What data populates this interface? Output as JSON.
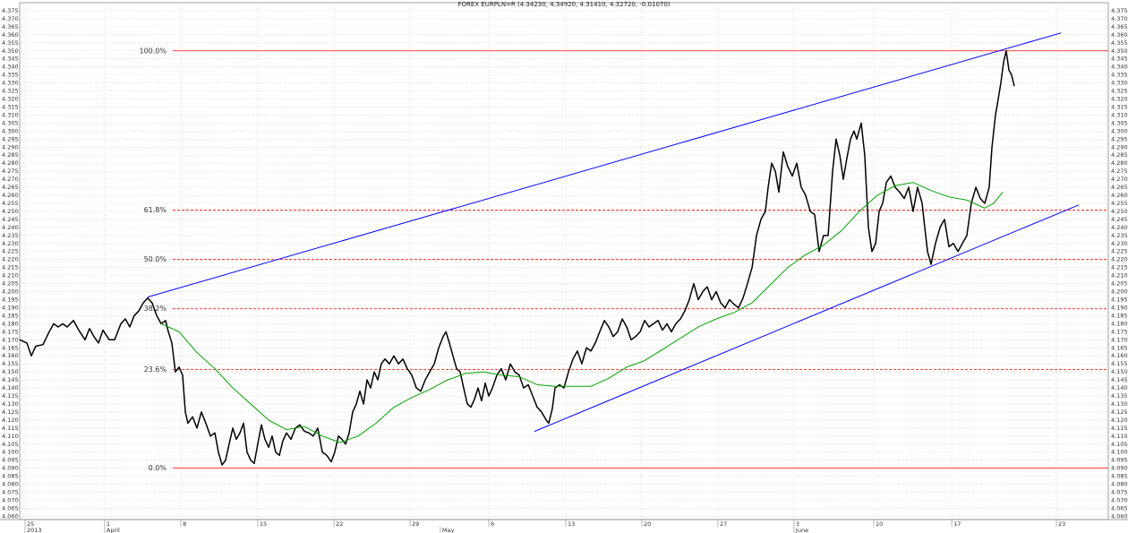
{
  "chart_data": {
    "type": "line",
    "title": "FOREX EURPLN=R (4.34230, 4.34920, 4.31410, 4.32720, -0.01070)",
    "xlim": [
      -0.35,
      70.76
    ],
    "ylim": [
      4.058,
      4.38
    ],
    "grid": true,
    "xticks": [
      {
        "value": 0,
        "label": "25"
      },
      {
        "value": 5.2,
        "label": "1"
      },
      {
        "value": 10.18,
        "label": "8"
      },
      {
        "value": 15.2,
        "label": "15"
      },
      {
        "value": 20.18,
        "label": "22"
      },
      {
        "value": 25.15,
        "label": "29"
      },
      {
        "value": 30.29,
        "label": "6"
      },
      {
        "value": 35.32,
        "label": "13"
      },
      {
        "value": 40.29,
        "label": "20"
      },
      {
        "value": 45.26,
        "label": "27"
      },
      {
        "value": 50.23,
        "label": "3"
      },
      {
        "value": 55.44,
        "label": "10"
      },
      {
        "value": 60.53,
        "label": "17"
      },
      {
        "value": 67.37,
        "label": "23"
      }
    ],
    "x_periods": [
      {
        "value": 0,
        "label": "2013"
      },
      {
        "value": 5.2,
        "label": "April"
      },
      {
        "value": 27.13,
        "label": "May"
      },
      {
        "value": 50.23,
        "label": "June"
      }
    ],
    "yticks": [
      {
        "value": 4.06,
        "label": "4.060"
      },
      4.065,
      {
        "value": 4.07,
        "label": "4.070"
      },
      4.075,
      {
        "value": 4.08,
        "label": "4.080"
      },
      4.085,
      {
        "value": 4.09,
        "label": "4.090"
      },
      4.095,
      {
        "value": 4.1,
        "label": "4.100"
      },
      4.105,
      {
        "value": 4.11,
        "label": "4.110"
      },
      4.115,
      {
        "value": 4.12,
        "label": "4.120"
      },
      4.125,
      {
        "value": 4.13,
        "label": "4.130"
      },
      4.135,
      {
        "value": 4.14,
        "label": "4.140"
      },
      4.145,
      {
        "value": 4.15,
        "label": "4.150"
      },
      4.155,
      {
        "value": 4.16,
        "label": "4.160"
      },
      4.165,
      {
        "value": 4.17,
        "label": "4.170"
      },
      4.175,
      {
        "value": 4.18,
        "label": "4.180"
      },
      4.185,
      {
        "value": 4.19,
        "label": "4.190"
      },
      4.195,
      {
        "value": 4.2,
        "label": "4.200"
      },
      4.205,
      {
        "value": 4.21,
        "label": "4.210"
      },
      4.215,
      {
        "value": 4.22,
        "label": "4.220"
      },
      4.225,
      {
        "value": 4.23,
        "label": "4.230"
      },
      4.235,
      {
        "value": 4.24,
        "label": "4.240"
      },
      4.245,
      {
        "value": 4.25,
        "label": "4.250"
      },
      4.255,
      {
        "value": 4.26,
        "label": "4.260"
      },
      4.265,
      {
        "value": 4.27,
        "label": "4.270"
      },
      4.275,
      {
        "value": 4.28,
        "label": "4.280"
      },
      4.285,
      {
        "value": 4.29,
        "label": "4.290"
      },
      4.295,
      {
        "value": 4.3,
        "label": "4.300"
      },
      4.305,
      {
        "value": 4.31,
        "label": "4.310"
      },
      4.315,
      {
        "value": 4.32,
        "label": "4.320"
      },
      4.325,
      {
        "value": 4.33,
        "label": "4.330"
      },
      4.335,
      {
        "value": 4.34,
        "label": "4.340"
      },
      4.345,
      {
        "value": 4.35,
        "label": "4.350"
      },
      4.355,
      {
        "value": 4.36,
        "label": "4.360"
      },
      4.365,
      {
        "value": 4.37,
        "label": "4.370"
      },
      4.375
    ],
    "series": [
      {
        "color": "#000000",
        "x": [
          -0.35,
          0.12,
          0.41,
          0.7,
          1.17,
          1.58,
          1.87,
          2.16,
          2.46,
          2.75,
          3.16,
          3.51,
          3.92,
          4.21,
          4.5,
          4.8,
          5.09,
          5.5,
          5.85,
          6.26,
          6.55,
          6.84,
          7.13,
          7.43,
          7.72,
          8.01,
          8.3,
          8.6,
          8.89,
          9.18,
          9.36,
          9.59,
          9.82,
          10.06,
          10.29,
          10.47,
          10.64,
          10.94,
          11.23,
          11.52,
          11.81,
          12.11,
          12.4,
          12.63,
          12.87,
          13.1,
          13.33,
          13.57,
          13.8,
          14.04,
          14.27,
          14.5,
          14.74,
          14.97,
          15.2,
          15.44,
          15.67,
          15.91,
          16.14,
          16.37,
          16.61,
          16.84,
          17.08,
          17.37,
          17.66,
          17.95,
          18.25,
          18.54,
          18.83,
          19.12,
          19.42,
          19.71,
          20.0,
          20.23,
          20.47,
          20.7,
          20.94,
          21.17,
          21.4,
          21.64,
          21.87,
          22.11,
          22.34,
          22.57,
          22.81,
          23.04,
          23.27,
          23.51,
          23.8,
          24.09,
          24.39,
          24.68,
          24.97,
          25.26,
          25.56,
          25.85,
          26.14,
          26.43,
          26.73,
          27.02,
          27.31,
          27.49,
          27.72,
          27.95,
          28.19,
          28.42,
          28.65,
          28.89,
          29.12,
          29.36,
          29.59,
          29.82,
          30.06,
          30.29,
          30.53,
          30.82,
          31.11,
          31.4,
          31.7,
          31.99,
          32.28,
          32.57,
          32.87,
          33.16,
          33.45,
          33.74,
          34.04,
          34.21,
          34.44,
          34.62,
          34.91,
          35.2,
          35.5,
          35.79,
          36.08,
          36.37,
          36.67,
          36.96,
          37.25,
          37.54,
          37.84,
          38.13,
          38.42,
          38.71,
          39.01,
          39.3,
          39.59,
          39.88,
          40.18,
          40.47,
          40.76,
          41.05,
          41.35,
          41.64,
          41.93,
          42.22,
          42.51,
          42.81,
          43.1,
          43.39,
          43.68,
          43.98,
          44.27,
          44.56,
          44.85,
          45.15,
          45.44,
          45.73,
          46.02,
          46.32,
          46.61,
          46.9,
          47.19,
          47.49,
          47.78,
          48.07,
          48.36,
          48.54,
          48.77,
          49.01,
          49.24,
          49.53,
          49.82,
          50.12,
          50.41,
          50.7,
          50.99,
          51.29,
          51.58,
          51.87,
          52.16,
          52.46,
          52.75,
          52.98,
          53.22,
          53.45,
          53.68,
          53.92,
          54.15,
          54.33,
          54.62,
          54.85,
          55.09,
          55.32,
          55.56,
          55.79,
          56.02,
          56.26,
          56.55,
          56.84,
          57.13,
          57.43,
          57.72,
          58.01,
          58.3,
          58.6,
          58.77,
          58.95,
          59.18,
          59.47,
          59.77,
          60.06,
          60.35,
          60.64,
          60.94,
          61.23,
          61.52,
          61.81,
          62.11,
          62.4,
          62.69,
          62.98,
          63.16,
          63.39,
          63.57,
          63.74,
          63.92,
          64.09,
          64.27,
          64.44,
          64.62
        ],
        "values": [
          4.17,
          4.168,
          4.16,
          4.166,
          4.167,
          4.175,
          4.18,
          4.178,
          4.18,
          4.178,
          4.182,
          4.176,
          4.17,
          4.177,
          4.172,
          4.168,
          4.176,
          4.17,
          4.17,
          4.18,
          4.183,
          4.178,
          4.185,
          4.188,
          4.193,
          4.196,
          4.193,
          4.185,
          4.18,
          4.182,
          4.175,
          4.168,
          4.15,
          4.153,
          4.148,
          4.125,
          4.118,
          4.122,
          4.115,
          4.125,
          4.118,
          4.11,
          4.112,
          4.1,
          4.092,
          4.095,
          4.105,
          4.115,
          4.108,
          4.112,
          4.118,
          4.1,
          4.095,
          4.093,
          4.105,
          4.117,
          4.108,
          4.103,
          4.11,
          4.1,
          4.098,
          4.107,
          4.112,
          4.108,
          4.115,
          4.117,
          4.113,
          4.112,
          4.11,
          4.115,
          4.1,
          4.098,
          4.094,
          4.1,
          4.11,
          4.108,
          4.105,
          4.112,
          4.125,
          4.13,
          4.138,
          4.13,
          4.145,
          4.14,
          4.15,
          4.145,
          4.155,
          4.158,
          4.155,
          4.16,
          4.155,
          4.158,
          4.152,
          4.148,
          4.14,
          4.138,
          4.145,
          4.15,
          4.155,
          4.165,
          4.172,
          4.175,
          4.168,
          4.16,
          4.152,
          4.15,
          4.14,
          4.13,
          4.128,
          4.133,
          4.14,
          4.132,
          4.143,
          4.135,
          4.14,
          4.148,
          4.152,
          4.145,
          4.155,
          4.15,
          4.148,
          4.14,
          4.142,
          4.135,
          4.128,
          4.125,
          4.12,
          4.118,
          4.127,
          4.14,
          4.142,
          4.14,
          4.15,
          4.158,
          4.163,
          4.155,
          4.165,
          4.163,
          4.168,
          4.175,
          4.182,
          4.178,
          4.172,
          4.175,
          4.183,
          4.178,
          4.17,
          4.172,
          4.175,
          4.182,
          4.178,
          4.18,
          4.182,
          4.176,
          4.18,
          4.175,
          4.18,
          4.183,
          4.188,
          4.195,
          4.205,
          4.195,
          4.2,
          4.203,
          4.195,
          4.2,
          4.193,
          4.19,
          4.195,
          4.192,
          4.19,
          4.196,
          4.205,
          4.215,
          4.235,
          4.245,
          4.25,
          4.265,
          4.28,
          4.275,
          4.262,
          4.287,
          4.278,
          4.272,
          4.28,
          4.265,
          4.26,
          4.25,
          4.248,
          4.225,
          4.235,
          4.235,
          4.275,
          4.295,
          4.285,
          4.27,
          4.283,
          4.295,
          4.3,
          4.295,
          4.305,
          4.285,
          4.24,
          4.225,
          4.23,
          4.25,
          4.255,
          4.268,
          4.272,
          4.265,
          4.262,
          4.258,
          4.265,
          4.25,
          4.265,
          4.255,
          4.24,
          4.225,
          4.217,
          4.23,
          4.24,
          4.245,
          4.228,
          4.23,
          4.225,
          4.23,
          4.235,
          4.255,
          4.265,
          4.258,
          4.255,
          4.265,
          4.29,
          4.31,
          4.32,
          4.33,
          4.343,
          4.35,
          4.338,
          4.335,
          4.328
        ]
      },
      {
        "color": "#00a000",
        "x": [
          8.89,
          10.06,
          11.23,
          12.4,
          13.57,
          14.74,
          15.91,
          17.08,
          18.25,
          19.42,
          20.58,
          21.75,
          22.92,
          24.09,
          25.26,
          26.43,
          27.6,
          28.77,
          29.94,
          31.11,
          32.28,
          33.45,
          34.62,
          35.79,
          36.96,
          38.13,
          39.3,
          40.47,
          41.64,
          42.81,
          43.98,
          45.15,
          46.32,
          47.49,
          48.65,
          49.82,
          50.99,
          52.16,
          53.33,
          54.5,
          55.67,
          56.84,
          58.01,
          59.18,
          60.35,
          61.52,
          62.69,
          63.27,
          63.86
        ],
        "values": [
          4.18,
          4.175,
          4.162,
          4.152,
          4.14,
          4.13,
          4.12,
          4.114,
          4.116,
          4.11,
          4.106,
          4.11,
          4.118,
          4.128,
          4.134,
          4.139,
          4.145,
          4.149,
          4.15,
          4.148,
          4.147,
          4.142,
          4.141,
          4.141,
          4.141,
          4.146,
          4.153,
          4.157,
          4.164,
          4.171,
          4.178,
          4.183,
          4.187,
          4.193,
          4.204,
          4.215,
          4.223,
          4.229,
          4.238,
          4.25,
          4.26,
          4.266,
          4.268,
          4.263,
          4.259,
          4.257,
          4.252,
          4.255,
          4.262
        ]
      }
    ],
    "trend_lines": [
      {
        "color": "#0000ff",
        "x": [
          8.01,
          67.68
        ],
        "values": [
          4.1966,
          4.3612
        ]
      },
      {
        "color": "#0000ff",
        "x": [
          33.27,
          68.83
        ],
        "values": [
          4.1129,
          4.254
        ]
      }
    ],
    "fib_color": "#ff0000",
    "fib_levels": [
      {
        "value": 4.35,
        "label": "100.0%",
        "style": "solid"
      },
      {
        "value": 4.2507,
        "label": "61.8%",
        "style": "dashed"
      },
      {
        "value": 4.22,
        "label": "50.0%",
        "style": "dashed"
      },
      {
        "value": 4.1893,
        "label": "38.2%",
        "style": "dashed"
      },
      {
        "value": 4.1514,
        "label": "23.6%",
        "style": "dashed"
      },
      {
        "value": 4.09,
        "label": "0.0%",
        "style": "solid"
      }
    ]
  }
}
